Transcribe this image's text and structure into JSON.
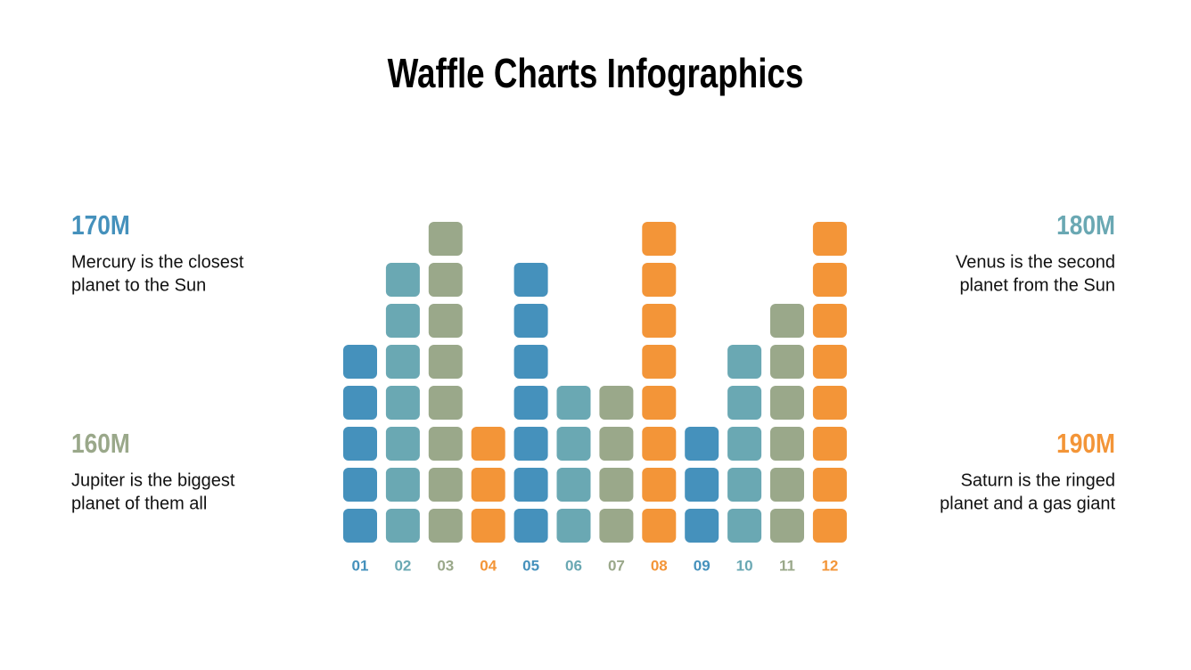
{
  "chart_data": {
    "type": "waffle",
    "title": "Waffle Charts Infographics",
    "categories": [
      "01",
      "02",
      "03",
      "04",
      "05",
      "06",
      "07",
      "08",
      "09",
      "10",
      "11",
      "12"
    ],
    "values": [
      5,
      7,
      8,
      3,
      7,
      4,
      4,
      8,
      3,
      5,
      6,
      8
    ],
    "colors": [
      "#4591bc",
      "#6aa8b3",
      "#9aa88a",
      "#f39538",
      "#4591bc",
      "#6aa8b3",
      "#9aa88a",
      "#f39538",
      "#4591bc",
      "#6aa8b3",
      "#9aa88a",
      "#f39538"
    ],
    "annotations": [
      {
        "title": "170M",
        "lines": [
          "Mercury is the closest",
          "planet to the Sun"
        ],
        "color": "#4591bc",
        "side": "left",
        "row": "top"
      },
      {
        "title": "160M",
        "lines": [
          "Jupiter is the biggest",
          "planet of them all"
        ],
        "color": "#9aa88a",
        "side": "left",
        "row": "bottom"
      },
      {
        "title": "180M",
        "lines": [
          "Venus is the second",
          "planet from the Sun"
        ],
        "color": "#6aa8b3",
        "side": "right",
        "row": "top"
      },
      {
        "title": "190M",
        "lines": [
          "Saturn is the ringed",
          "planet and a gas giant"
        ],
        "color": "#f39538",
        "side": "right",
        "row": "bottom"
      }
    ]
  }
}
